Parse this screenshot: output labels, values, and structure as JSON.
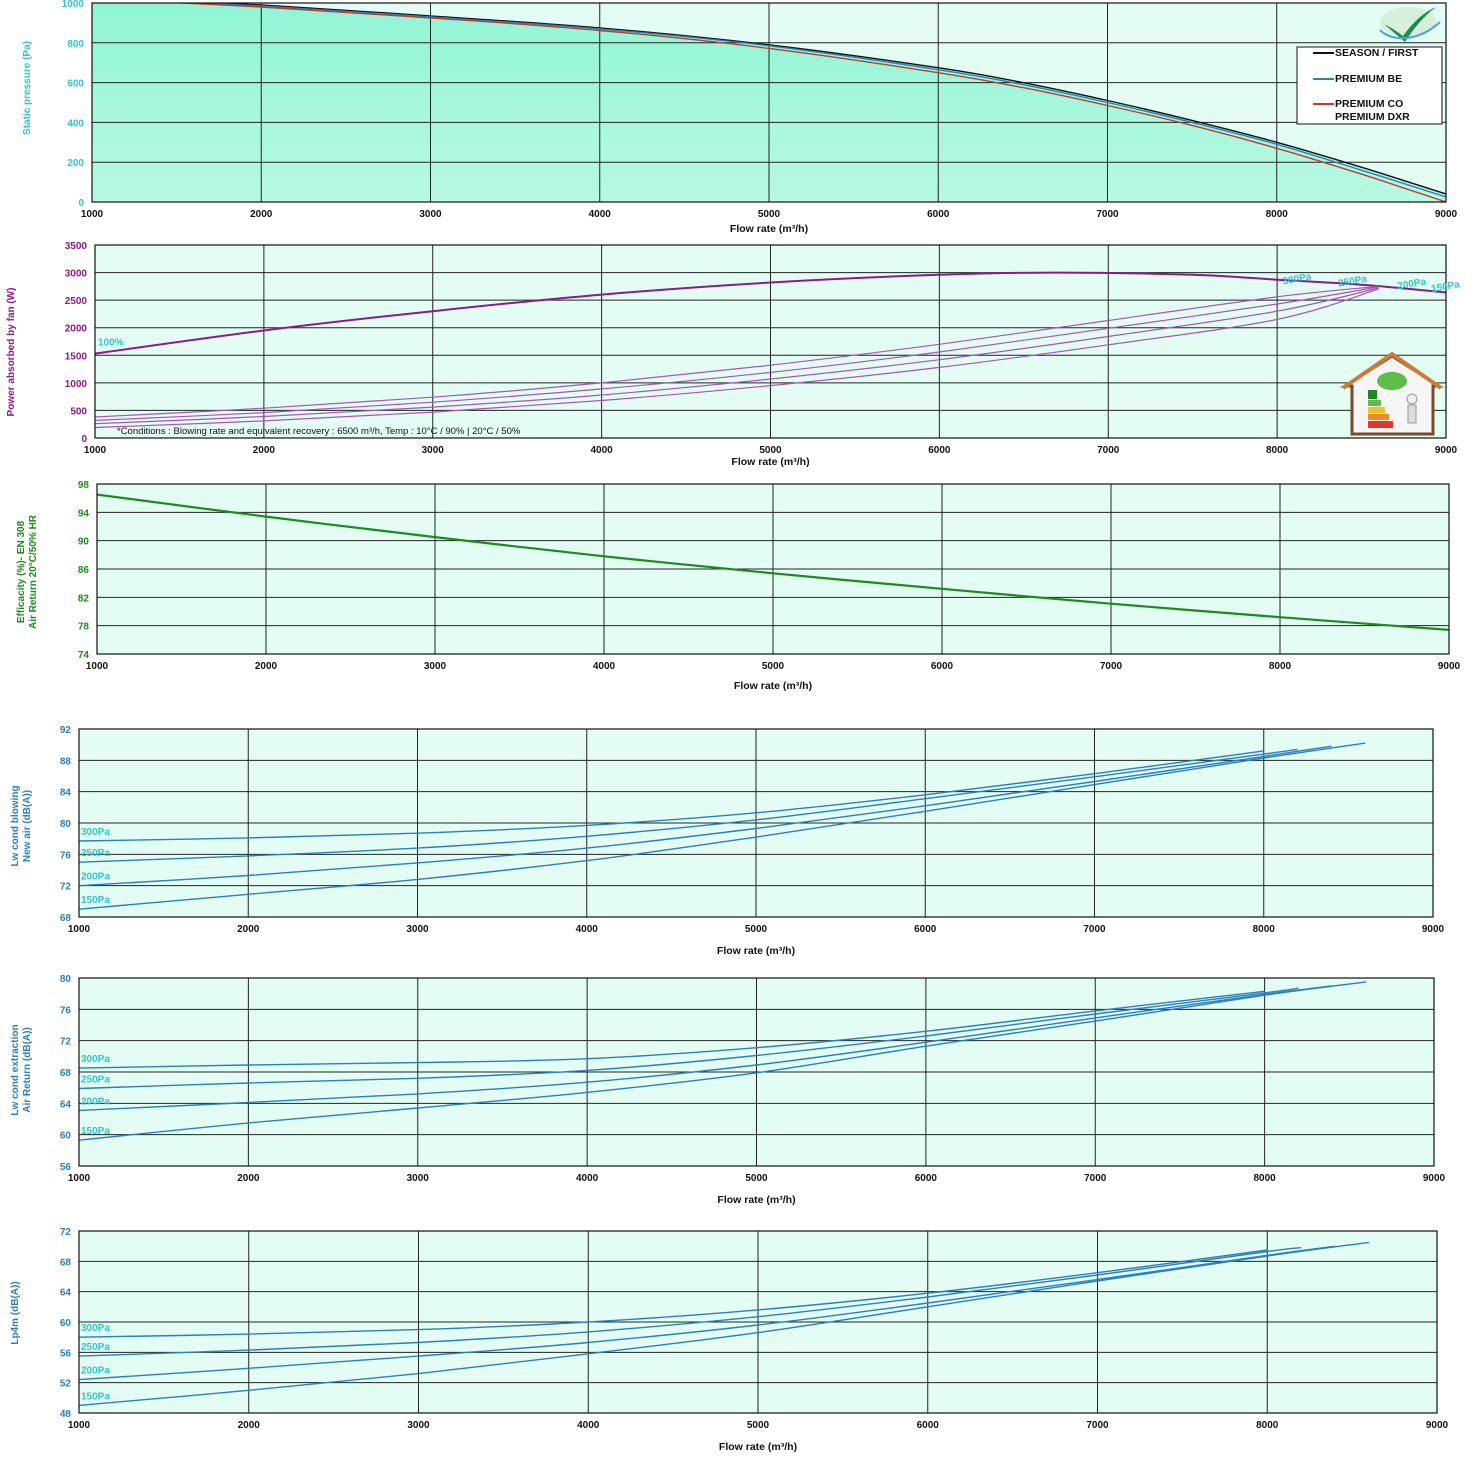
{
  "chart_data": [
    {
      "id": "static-pressure",
      "type": "line",
      "title": "",
      "xlabel": "Flow rate (m³/h)",
      "ylabel": "Static pressure (Pa)",
      "xlim": [
        1000,
        9000
      ],
      "ylim": [
        0,
        1000
      ],
      "xticks": [
        "1000",
        "2000",
        "3000",
        "4000",
        "5000",
        "6000",
        "7000",
        "8000",
        "9000"
      ],
      "yticks": [
        "0",
        "200",
        "400",
        "600",
        "800",
        "1000"
      ],
      "grid": true,
      "legend_position": "top-right",
      "fill_under_first_series": true,
      "colors": {
        "axis_label": "#34c4c9",
        "tick": "#34c4c9"
      },
      "series": [
        {
          "name": "SEASON / FIRST",
          "color": "#111111",
          "x": [
            1000,
            2000,
            3000,
            4000,
            5000,
            6000,
            6500,
            7000,
            7500,
            8000,
            8500,
            9000
          ],
          "y": [
            1030,
            990,
            935,
            875,
            790,
            675,
            600,
            510,
            410,
            300,
            175,
            40
          ]
        },
        {
          "name": "PREMIUM BE",
          "color": "#2a7fbf",
          "x": [
            1000,
            2000,
            3000,
            4000,
            5000,
            6000,
            6500,
            7000,
            7500,
            8000,
            8500,
            9000
          ],
          "y": [
            1025,
            985,
            930,
            870,
            785,
            665,
            590,
            500,
            400,
            290,
            160,
            25
          ]
        },
        {
          "name": "PREMIUM CO\nPREMIUM DXR",
          "color": "#c43b2c",
          "x": [
            1000,
            2000,
            3000,
            4000,
            5000,
            6000,
            6500,
            7000,
            7500,
            8000,
            8500,
            9000
          ],
          "y": [
            1020,
            980,
            925,
            862,
            772,
            650,
            575,
            485,
            385,
            270,
            140,
            0
          ]
        }
      ]
    },
    {
      "id": "power-absorbed",
      "type": "line",
      "title": "",
      "xlabel": "Flow rate (m³/h)",
      "ylabel": "Power absorbed by fan (W)",
      "xlim": [
        1000,
        9000
      ],
      "ylim": [
        0,
        3500
      ],
      "xticks": [
        "1000",
        "2000",
        "3000",
        "4000",
        "5000",
        "6000",
        "7000",
        "8000",
        "9000"
      ],
      "yticks": [
        "0",
        "500",
        "1000",
        "1500",
        "2000",
        "2500",
        "3000",
        "3500"
      ],
      "grid": true,
      "note": "*Conditions : Blowing rate and equivalent recovery : 6500 m³/h, Temp :  10°C / 90% | 20°C / 50%",
      "colors": {
        "axis_label": "#8b1a8b",
        "tick": "#8b1a8b",
        "curve_label": "#34c4c9"
      },
      "series": [
        {
          "name": "100%",
          "color": "#8b1a8b",
          "width": 2,
          "x": [
            1000,
            2000,
            3000,
            4000,
            5000,
            6000,
            6700,
            7500,
            8000,
            8500,
            9000
          ],
          "y": [
            1530,
            1950,
            2300,
            2600,
            2820,
            2960,
            3000,
            2960,
            2870,
            2780,
            2640
          ]
        },
        {
          "name": "300Pa",
          "color": "#a855b5",
          "width": 1.2,
          "x": [
            1000,
            2000,
            3000,
            4000,
            5000,
            6000,
            7000,
            8000,
            8600
          ],
          "y": [
            380,
            540,
            740,
            1000,
            1320,
            1700,
            2130,
            2560,
            2750
          ]
        },
        {
          "name": "250Pa",
          "color": "#a855b5",
          "width": 1.2,
          "x": [
            1000,
            2000,
            3000,
            4000,
            5000,
            6000,
            7000,
            8000,
            8600
          ],
          "y": [
            320,
            460,
            650,
            890,
            1190,
            1560,
            1990,
            2430,
            2740
          ]
        },
        {
          "name": "200Pa",
          "color": "#a855b5",
          "width": 1.2,
          "x": [
            1000,
            2000,
            3000,
            4000,
            5000,
            6000,
            7000,
            8000,
            8600
          ],
          "y": [
            260,
            390,
            560,
            780,
            1070,
            1420,
            1840,
            2300,
            2720
          ]
        },
        {
          "name": "150Pa",
          "color": "#a855b5",
          "width": 1.2,
          "x": [
            1000,
            2000,
            3000,
            4000,
            5000,
            6000,
            7000,
            8000,
            8600
          ],
          "y": [
            190,
            310,
            470,
            680,
            950,
            1280,
            1690,
            2150,
            2700
          ]
        }
      ]
    },
    {
      "id": "efficacity",
      "type": "line",
      "title": "",
      "xlabel": "Flow rate (m³/h)",
      "ylabel": "Efficacity (%)- EN 308\nAir Return 20°C/50% HR",
      "xlim": [
        1000,
        9000
      ],
      "ylim": [
        74,
        98
      ],
      "xticks": [
        "1000",
        "2000",
        "3000",
        "4000",
        "5000",
        "6000",
        "7000",
        "8000",
        "9000"
      ],
      "yticks": [
        "74",
        "78",
        "82",
        "86",
        "90",
        "94",
        "98"
      ],
      "grid": true,
      "colors": {
        "axis_label": "#1e8a1e",
        "tick": "#1e8a1e"
      },
      "series": [
        {
          "color": "#1e8a1e",
          "width": 2.2,
          "x": [
            1000,
            2000,
            3000,
            4000,
            5000,
            6000,
            7000,
            8000,
            9000
          ],
          "y": [
            96.5,
            93.4,
            90.5,
            87.8,
            85.4,
            83.2,
            81.1,
            79.2,
            77.4
          ]
        }
      ]
    },
    {
      "id": "lw-blowing",
      "type": "line",
      "title": "",
      "xlabel": "Flow rate (m³/h)",
      "ylabel": "Lw cond blowing\nNew air (dB(A))",
      "xlim": [
        1000,
        9000
      ],
      "ylim": [
        68,
        92
      ],
      "xticks": [
        "1000",
        "2000",
        "3000",
        "4000",
        "5000",
        "6000",
        "7000",
        "8000",
        "9000"
      ],
      "yticks": [
        "68",
        "72",
        "76",
        "80",
        "84",
        "88",
        "92"
      ],
      "grid": true,
      "colors": {
        "axis_label": "#2a7fbf",
        "tick": "#2a7fbf",
        "curve_label": "#34c4c9"
      },
      "series": [
        {
          "name": "300Pa",
          "color": "#2a7fbf",
          "x": [
            1000,
            2000,
            3000,
            4000,
            5000,
            6000,
            7000,
            8000
          ],
          "y": [
            77.7,
            78.1,
            78.7,
            79.7,
            81.3,
            83.6,
            86.3,
            89.2
          ]
        },
        {
          "name": "250Pa",
          "color": "#2a7fbf",
          "x": [
            1000,
            2000,
            3000,
            4000,
            5000,
            6000,
            7000,
            8000,
            8200
          ],
          "y": [
            75.0,
            75.8,
            76.8,
            78.3,
            80.4,
            83.1,
            85.9,
            88.8,
            89.4
          ]
        },
        {
          "name": "200Pa",
          "color": "#2a7fbf",
          "x": [
            1000,
            2000,
            3000,
            4000,
            5000,
            6000,
            7000,
            8000,
            8400
          ],
          "y": [
            72.0,
            73.3,
            74.9,
            76.8,
            79.3,
            82.2,
            85.3,
            88.5,
            89.8
          ]
        },
        {
          "name": "150Pa",
          "color": "#2a7fbf",
          "x": [
            1000,
            2000,
            3000,
            4000,
            5000,
            6000,
            7000,
            8000,
            8600
          ],
          "y": [
            69.0,
            70.9,
            72.8,
            75.2,
            78.2,
            81.5,
            84.9,
            88.3,
            90.2
          ]
        }
      ]
    },
    {
      "id": "lw-extraction",
      "type": "line",
      "title": "",
      "xlabel": "Flow rate (m³/h)",
      "ylabel": "Lw cond extraction\nAir Return (dB(A))",
      "xlim": [
        1000,
        9000
      ],
      "ylim": [
        56,
        80
      ],
      "xticks": [
        "1000",
        "2000",
        "3000",
        "4000",
        "5000",
        "6000",
        "7000",
        "8000",
        "9000"
      ],
      "yticks": [
        "56",
        "60",
        "64",
        "68",
        "72",
        "76",
        "80"
      ],
      "grid": true,
      "colors": {
        "axis_label": "#2a7fbf",
        "tick": "#2a7fbf",
        "curve_label": "#34c4c9"
      },
      "series": [
        {
          "name": "300Pa",
          "color": "#2a7fbf",
          "x": [
            1000,
            2000,
            3000,
            4000,
            5000,
            6000,
            7000,
            8000
          ],
          "y": [
            68.5,
            68.9,
            69.2,
            69.7,
            71.1,
            73.2,
            75.8,
            78.3
          ]
        },
        {
          "name": "250Pa",
          "color": "#2a7fbf",
          "x": [
            1000,
            2000,
            3000,
            4000,
            5000,
            6000,
            7000,
            8000,
            8200
          ],
          "y": [
            65.9,
            66.6,
            67.2,
            68.2,
            70.1,
            72.6,
            75.4,
            78.1,
            78.7
          ]
        },
        {
          "name": "200Pa",
          "color": "#2a7fbf",
          "x": [
            1000,
            2000,
            3000,
            4000,
            5000,
            6000,
            7000,
            8000,
            8400
          ],
          "y": [
            63.1,
            64.1,
            65.2,
            66.7,
            68.9,
            71.8,
            74.9,
            77.9,
            79.0
          ]
        },
        {
          "name": "150Pa",
          "color": "#2a7fbf",
          "x": [
            1000,
            2000,
            3000,
            4000,
            5000,
            6000,
            7000,
            8000,
            8600
          ],
          "y": [
            59.3,
            61.5,
            63.4,
            65.4,
            67.9,
            71.3,
            74.5,
            77.8,
            79.5
          ]
        }
      ]
    },
    {
      "id": "lp4m",
      "type": "line",
      "title": "",
      "xlabel": "Flow rate (m³/h)",
      "ylabel": "Lp4m  (dB(A))",
      "xlim": [
        1000,
        9000
      ],
      "ylim": [
        48,
        72
      ],
      "xticks": [
        "1000",
        "2000",
        "3000",
        "4000",
        "5000",
        "6000",
        "7000",
        "8000",
        "9000"
      ],
      "yticks": [
        "48",
        "52",
        "56",
        "60",
        "64",
        "68",
        "72"
      ],
      "grid": true,
      "colors": {
        "axis_label": "#2a7fbf",
        "tick": "#2a7fbf",
        "curve_label": "#34c4c9"
      },
      "series": [
        {
          "name": "300Pa",
          "color": "#2a7fbf",
          "x": [
            1000,
            2000,
            3000,
            4000,
            5000,
            6000,
            7000,
            8000
          ],
          "y": [
            58.0,
            58.4,
            59.0,
            60.0,
            61.6,
            63.8,
            66.5,
            69.5
          ]
        },
        {
          "name": "250Pa",
          "color": "#2a7fbf",
          "x": [
            1000,
            2000,
            3000,
            4000,
            5000,
            6000,
            7000,
            8000,
            8200
          ],
          "y": [
            55.5,
            56.3,
            57.3,
            58.7,
            60.7,
            63.3,
            66.2,
            69.3,
            69.8
          ]
        },
        {
          "name": "200Pa",
          "color": "#2a7fbf",
          "x": [
            1000,
            2000,
            3000,
            4000,
            5000,
            6000,
            7000,
            8000,
            8400
          ],
          "y": [
            52.4,
            53.9,
            55.5,
            57.3,
            59.6,
            62.5,
            65.6,
            68.8,
            70.0
          ]
        },
        {
          "name": "150Pa",
          "color": "#2a7fbf",
          "x": [
            1000,
            2000,
            3000,
            4000,
            5000,
            6000,
            7000,
            8000,
            8600
          ],
          "y": [
            49.0,
            51.0,
            53.2,
            55.8,
            58.6,
            62.0,
            65.4,
            68.7,
            70.5
          ]
        }
      ]
    }
  ],
  "logos": {
    "brand": {
      "icon": "checkmark-swoosh-logo",
      "colors": [
        "#1e8a4c",
        "#4aa3df",
        "#cfe8d0"
      ]
    },
    "energy": {
      "icon": "energy-label-house-icon",
      "colors": [
        "#d07b34",
        "#1e8a1e",
        "#e2382b",
        "#f2c12e"
      ]
    }
  }
}
